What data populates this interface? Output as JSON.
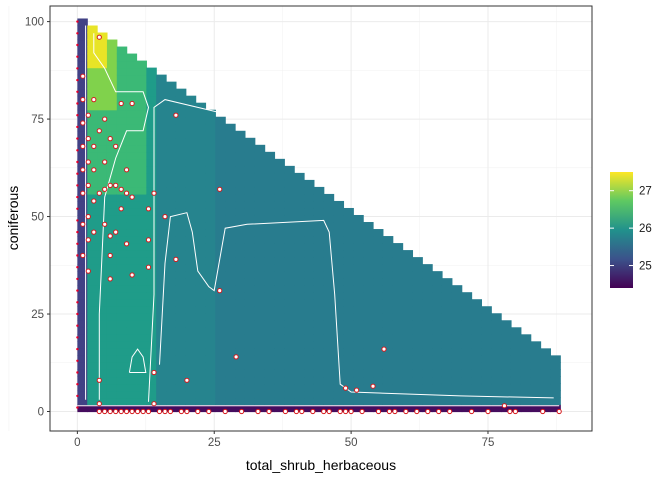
{
  "chart_data": {
    "type": "heatmap",
    "xlabel": "total_shrub_herbaceous",
    "ylabel": "coniferous",
    "xlim": [
      -5,
      94
    ],
    "ylim": [
      -5,
      104
    ],
    "x_ticks": [
      0,
      25,
      50,
      75
    ],
    "y_ticks": [
      0,
      25,
      50,
      75,
      100
    ],
    "x_tick_labels": [
      "0",
      "25",
      "50",
      "75"
    ],
    "y_tick_labels": [
      "0",
      "25",
      "50",
      "75",
      "100"
    ],
    "grid": true,
    "colorscale": "viridis",
    "legend": {
      "position": "right",
      "range": [
        24.4,
        27.5
      ],
      "ticks": [
        25,
        26,
        27
      ],
      "tick_labels": [
        "25",
        "26",
        "27"
      ]
    },
    "surface": {
      "cell_x": 1.8,
      "cell_y": 1.8,
      "x_max": 88,
      "bottom_band": {
        "y_max": 2,
        "value": 24.5
      },
      "regions": [
        {
          "x_min": 0,
          "x_max": 2,
          "value": 25.0
        },
        {
          "x_min": 2,
          "x_max": 5,
          "y_min": 88,
          "value": 27.4
        },
        {
          "x_min": 2,
          "x_max": 8,
          "y_min": 78,
          "value": 26.9
        },
        {
          "x_min": 2,
          "x_max": 13,
          "y_min": 55,
          "value": 26.5
        },
        {
          "x_min": 2,
          "x_max": 14,
          "y_min": 2,
          "value": 26.1
        },
        {
          "x_min": 14,
          "x_max": 25,
          "y_min": 2,
          "value": 25.8
        },
        {
          "x_min": 25,
          "x_max": 89,
          "y_min": 2,
          "value": 25.7
        }
      ]
    },
    "contours": [
      {
        "level": 25.0,
        "path": [
          [
            0,
            1.5
          ],
          [
            88,
            1.5
          ]
        ]
      },
      {
        "level": 25.5,
        "path": [
          [
            1.5,
            3
          ],
          [
            1.5,
            99
          ]
        ]
      },
      {
        "level": 26.0,
        "path": [
          [
            13,
            2.5
          ],
          [
            14,
            30
          ],
          [
            14,
            64
          ],
          [
            14,
            78
          ],
          [
            16,
            80
          ],
          [
            22,
            78
          ],
          [
            28,
            76
          ]
        ]
      },
      {
        "level": 26.0,
        "path": [
          [
            15,
            12
          ],
          [
            16,
            38
          ],
          [
            17,
            50
          ],
          [
            20,
            51
          ],
          [
            21,
            46
          ],
          [
            22,
            36
          ],
          [
            24,
            32
          ],
          [
            25,
            31
          ],
          [
            27,
            47
          ],
          [
            31,
            48
          ],
          [
            45,
            49
          ],
          [
            46,
            46
          ],
          [
            47,
            30
          ],
          [
            48,
            7
          ],
          [
            50,
            5
          ],
          [
            70,
            4
          ],
          [
            87,
            3.5
          ]
        ]
      },
      {
        "level": 26.5,
        "path": [
          [
            4,
            3
          ],
          [
            4,
            25
          ],
          [
            5,
            55
          ],
          [
            7,
            65
          ],
          [
            9,
            72
          ],
          [
            12,
            72
          ],
          [
            13,
            78
          ],
          [
            12,
            82
          ],
          [
            7,
            82
          ],
          [
            5,
            88
          ],
          [
            3,
            92
          ],
          [
            3,
            97
          ]
        ]
      },
      {
        "level": 26.5,
        "path": [
          [
            9.5,
            10
          ],
          [
            10,
            14
          ],
          [
            11,
            16
          ],
          [
            12,
            14
          ],
          [
            12.5,
            10
          ],
          [
            9.5,
            10
          ]
        ]
      }
    ],
    "points": [
      [
        0,
        100
      ],
      [
        0,
        97
      ],
      [
        0,
        94
      ],
      [
        0,
        91
      ],
      [
        0,
        88
      ],
      [
        0,
        85
      ],
      [
        0,
        82
      ],
      [
        0,
        79
      ],
      [
        0,
        76
      ],
      [
        0,
        73
      ],
      [
        0,
        70
      ],
      [
        0,
        67
      ],
      [
        0,
        64
      ],
      [
        0,
        61
      ],
      [
        0,
        58
      ],
      [
        0,
        55
      ],
      [
        0,
        52
      ],
      [
        0,
        49
      ],
      [
        0,
        46
      ],
      [
        0,
        43
      ],
      [
        0,
        40
      ],
      [
        0,
        37
      ],
      [
        0,
        34
      ],
      [
        0,
        31
      ],
      [
        0,
        28
      ],
      [
        0,
        25
      ],
      [
        0,
        22
      ],
      [
        0,
        19
      ],
      [
        0,
        16
      ],
      [
        0,
        13
      ],
      [
        0,
        10
      ],
      [
        0,
        7
      ],
      [
        0,
        4
      ],
      [
        0,
        1
      ],
      [
        1,
        86
      ],
      [
        1,
        80
      ],
      [
        1,
        74
      ],
      [
        1,
        68
      ],
      [
        1,
        62
      ],
      [
        1,
        56
      ],
      [
        1,
        48
      ],
      [
        1,
        40
      ],
      [
        2,
        76
      ],
      [
        2,
        70
      ],
      [
        2,
        64
      ],
      [
        2,
        58
      ],
      [
        2,
        50
      ],
      [
        2,
        44
      ],
      [
        2,
        36
      ],
      [
        3,
        80
      ],
      [
        3,
        68
      ],
      [
        3,
        62
      ],
      [
        3,
        54
      ],
      [
        3,
        46
      ],
      [
        4,
        96
      ],
      [
        4,
        72
      ],
      [
        4,
        56
      ],
      [
        4,
        8
      ],
      [
        4,
        2
      ],
      [
        5,
        75
      ],
      [
        5,
        64
      ],
      [
        5,
        57
      ],
      [
        5,
        48
      ],
      [
        6,
        70
      ],
      [
        6,
        58
      ],
      [
        6,
        45
      ],
      [
        6,
        40
      ],
      [
        6,
        34
      ],
      [
        7,
        68
      ],
      [
        7,
        58
      ],
      [
        7,
        46
      ],
      [
        8,
        79
      ],
      [
        8,
        57
      ],
      [
        8,
        52
      ],
      [
        9,
        62
      ],
      [
        9,
        56
      ],
      [
        9,
        43
      ],
      [
        10,
        79
      ],
      [
        10,
        55
      ],
      [
        10,
        35
      ],
      [
        13,
        52
      ],
      [
        13,
        44
      ],
      [
        13,
        37
      ],
      [
        14,
        56
      ],
      [
        14,
        10
      ],
      [
        14,
        2
      ],
      [
        16,
        50
      ],
      [
        18,
        76
      ],
      [
        18,
        39
      ],
      [
        20,
        8
      ],
      [
        26,
        57
      ],
      [
        26,
        31
      ],
      [
        29,
        14
      ],
      [
        49,
        6
      ],
      [
        51,
        5.5
      ],
      [
        54,
        6.5
      ],
      [
        56,
        16
      ],
      [
        78,
        1.5
      ],
      [
        4,
        0
      ],
      [
        5,
        0
      ],
      [
        6,
        0
      ],
      [
        7,
        0
      ],
      [
        8,
        0
      ],
      [
        9,
        0
      ],
      [
        10,
        0
      ],
      [
        11,
        0
      ],
      [
        12,
        0
      ],
      [
        13,
        0
      ],
      [
        15,
        0
      ],
      [
        16,
        0
      ],
      [
        17,
        0
      ],
      [
        19,
        0
      ],
      [
        20,
        0
      ],
      [
        22,
        0
      ],
      [
        24,
        0
      ],
      [
        27,
        0
      ],
      [
        30,
        0
      ],
      [
        33,
        0
      ],
      [
        35,
        0
      ],
      [
        38,
        0
      ],
      [
        40,
        0
      ],
      [
        41,
        0
      ],
      [
        43,
        0
      ],
      [
        45,
        0
      ],
      [
        46,
        0
      ],
      [
        48,
        0
      ],
      [
        49,
        0
      ],
      [
        50,
        0
      ],
      [
        52,
        0
      ],
      [
        55,
        0
      ],
      [
        57,
        0
      ],
      [
        58,
        0
      ],
      [
        60,
        0
      ],
      [
        62,
        0
      ],
      [
        64,
        0
      ],
      [
        66,
        0
      ],
      [
        68,
        0
      ],
      [
        72,
        0
      ],
      [
        75,
        0
      ],
      [
        79,
        0
      ],
      [
        80,
        0
      ],
      [
        85,
        0
      ],
      [
        88,
        0
      ]
    ]
  }
}
